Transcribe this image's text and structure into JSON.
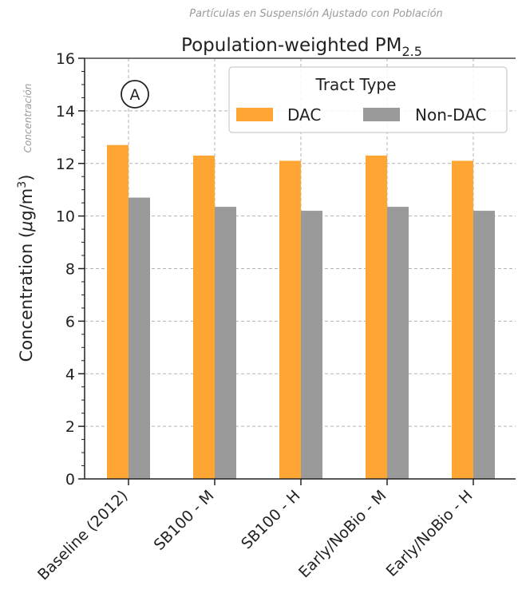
{
  "annotations": {
    "top_note": "Partículas en Suspensión Ajustado con Población",
    "side_note": "Concentración",
    "panel_marker": "A"
  },
  "chart_data": {
    "type": "bar",
    "title": "Population-weighted PM",
    "title_subscript": "2.5",
    "ylabel_prefix": "Concentration (",
    "ylabel_mu": "μ",
    "ylabel_g": "g/m",
    "ylabel_sup": "3",
    "ylabel_suffix": ")",
    "xlabel": "",
    "categories": [
      "Baseline (2012)",
      "SB100 - M",
      "SB100 - H",
      "Early/NoBio - M",
      "Early/NoBio - H"
    ],
    "series": [
      {
        "name": "DAC",
        "color": "#ffa533",
        "values": [
          12.7,
          12.3,
          12.1,
          12.3,
          12.1
        ]
      },
      {
        "name": "Non-DAC",
        "color": "#9a9a9a",
        "values": [
          10.7,
          10.35,
          10.2,
          10.35,
          10.2
        ]
      }
    ],
    "ylim": [
      0,
      16
    ],
    "yticks": [
      "0",
      "2",
      "4",
      "6",
      "8",
      "10",
      "12",
      "14",
      "16"
    ],
    "grid": true,
    "legend": {
      "title": "Tract Type",
      "placement": "top-right"
    }
  }
}
